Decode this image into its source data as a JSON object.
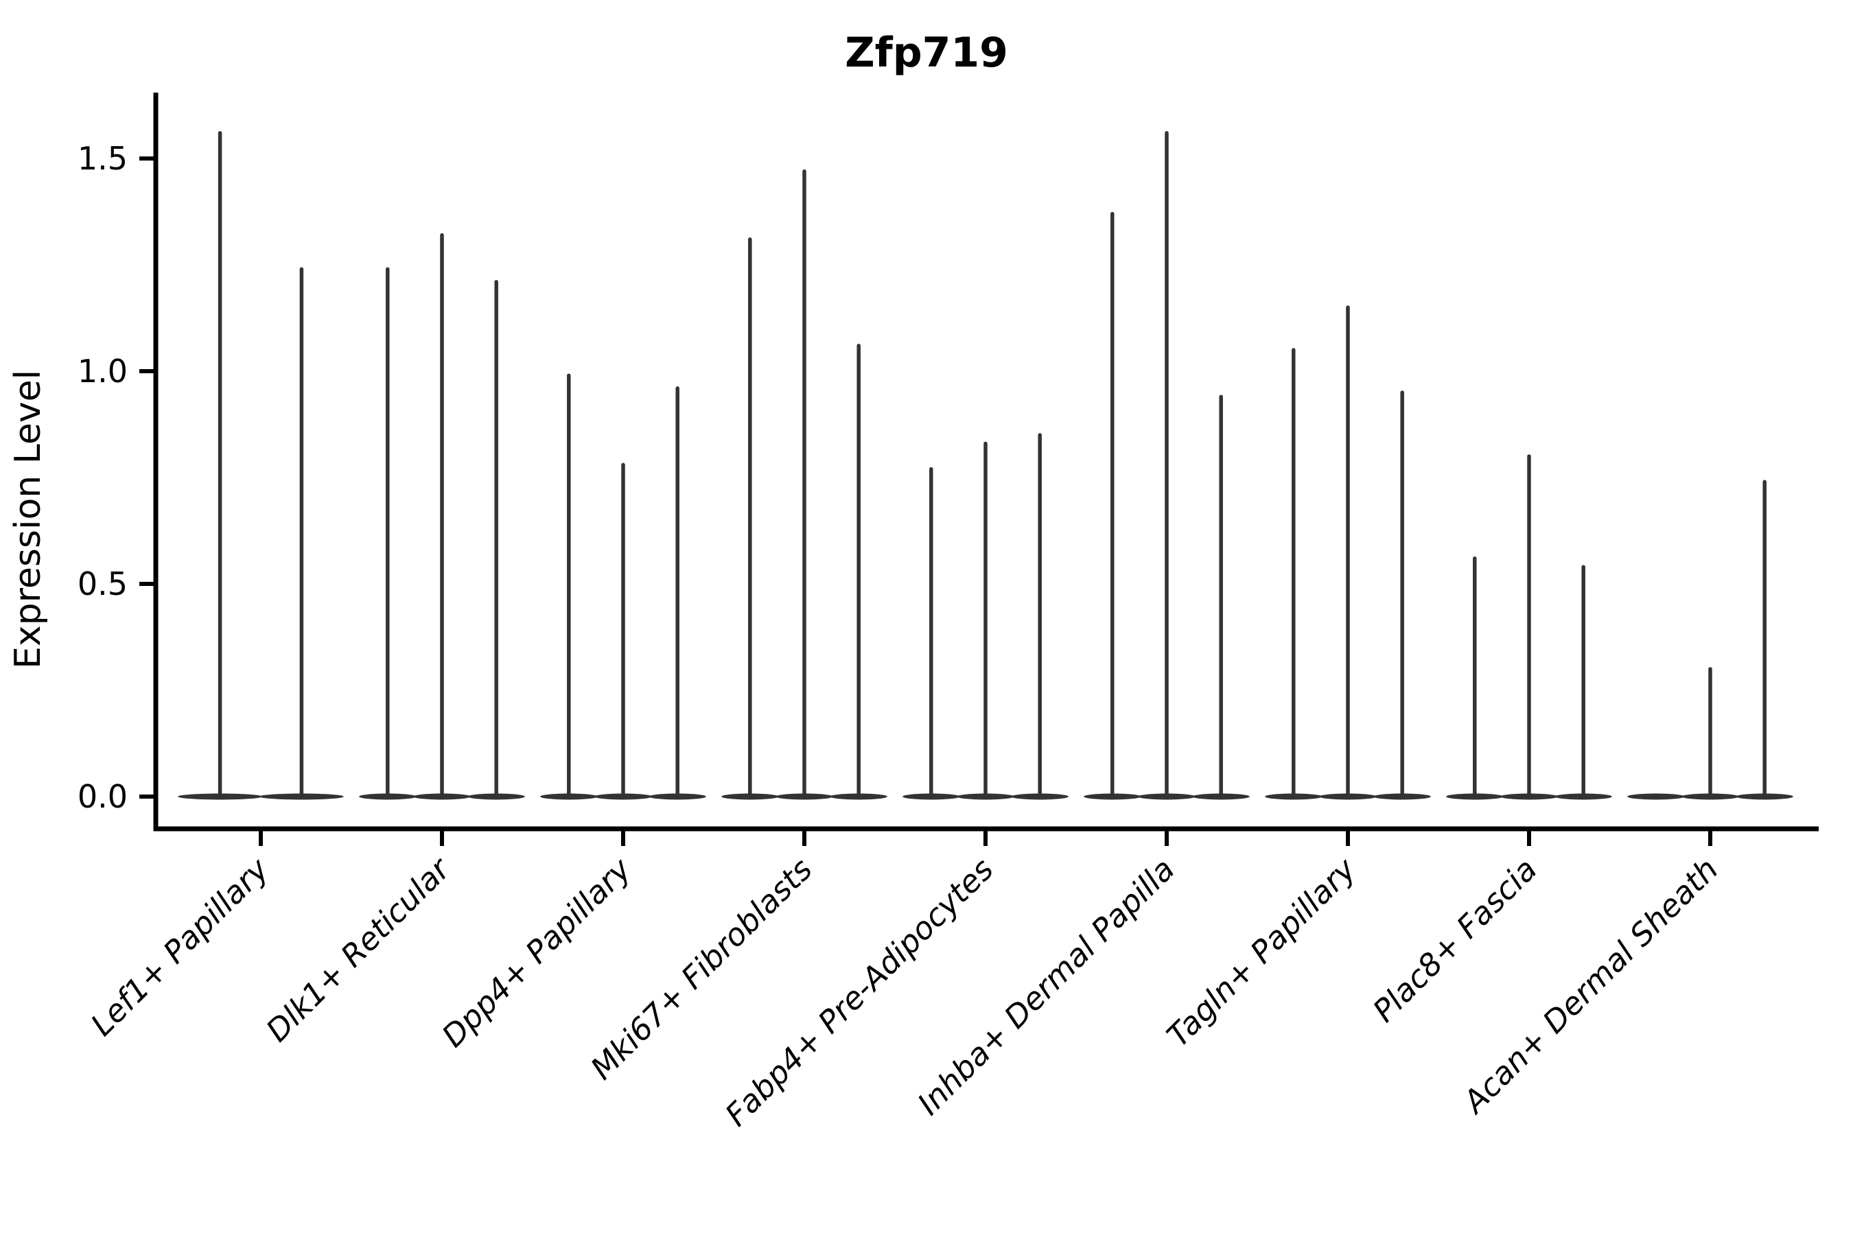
{
  "title": "Zfp719",
  "y_axis": {
    "label": "Expression Level",
    "tick_labels": [
      "0.0",
      "0.5",
      "1.0",
      "1.5"
    ]
  },
  "chart_data": {
    "type": "violin",
    "title": "Zfp719",
    "xlabel": "",
    "ylabel": "Expression Level",
    "categories": [
      "Lef1+ Papillary",
      "Dlk1+ Reticular",
      "Dpp4+ Papillary",
      "Mki67+ Fibroblasts",
      "Fabp4+ Pre-Adipocytes",
      "Inhba+ Dermal Papilla",
      "Tagln+ Papillary",
      "Plac8+ Fascia",
      "Acan+ Dermal Sheath"
    ],
    "series": [
      {
        "name": "Lef1+ Papillary",
        "violin_max_values": [
          1.56,
          1.24
        ]
      },
      {
        "name": "Dlk1+ Reticular",
        "violin_max_values": [
          1.24,
          1.32,
          1.21
        ]
      },
      {
        "name": "Dpp4+ Papillary",
        "violin_max_values": [
          0.99,
          0.78,
          0.96
        ]
      },
      {
        "name": "Mki67+ Fibroblasts",
        "violin_max_values": [
          1.31,
          1.47,
          1.06
        ]
      },
      {
        "name": "Fabp4+ Pre-Adipocytes",
        "violin_max_values": [
          0.77,
          0.83,
          0.85
        ]
      },
      {
        "name": "Inhba+ Dermal Papilla",
        "violin_max_values": [
          1.37,
          1.56,
          0.94
        ]
      },
      {
        "name": "Tagln+ Papillary",
        "violin_max_values": [
          1.05,
          1.15,
          0.95
        ]
      },
      {
        "name": "Plac8+ Fascia",
        "violin_max_values": [
          0.56,
          0.8,
          0.54
        ]
      },
      {
        "name": "Acan+ Dermal Sheath",
        "violin_max_values": [
          0.0,
          0.3,
          0.74
        ]
      }
    ],
    "yticks": [
      0.0,
      0.5,
      1.0,
      1.5
    ],
    "ylim": [
      -0.08,
      1.66
    ],
    "grid": false,
    "legend": "none",
    "violin_shape": "needle: distribution mass at 0 forming flat base, thin tail rising to max value",
    "x_tick_label_rotation_deg": 45,
    "x_tick_label_style": "italic",
    "colors": {
      "violin": "#333333",
      "axis": "#000000",
      "background": "#ffffff"
    }
  }
}
